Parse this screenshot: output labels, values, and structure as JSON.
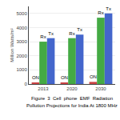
{
  "chart_data": {
    "type": "bar",
    "title": "Figure  3  Cell  phone  EMF  Radiation",
    "subtitle": "Pollution Projections for India At 1800 MHz",
    "ylabel": "Million Watts/m²",
    "categories": [
      "2013",
      "2020",
      "2030"
    ],
    "series": [
      {
        "name": "ON",
        "color": "#cc4444",
        "values": [
          80,
          100,
          150
        ]
      },
      {
        "name": "Rx",
        "color": "#44aa44",
        "values": [
          3000,
          3250,
          4700
        ]
      },
      {
        "name": "Tx",
        "color": "#4466cc",
        "values": [
          3250,
          3500,
          5000
        ]
      }
    ],
    "ylim": [
      0,
      5500
    ],
    "yticks": [
      0,
      1000,
      2000,
      3000,
      4000,
      5000
    ],
    "grid": true
  }
}
